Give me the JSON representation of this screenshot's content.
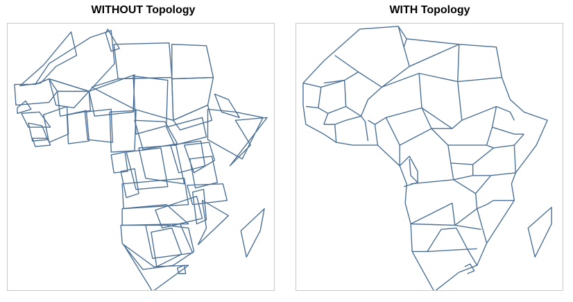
{
  "colors": {
    "stroke": "#4a6f96",
    "frame": "#c8c8c8",
    "background": "#ffffff"
  },
  "panels": [
    {
      "title": "WITHOUT Topology"
    },
    {
      "title": "WITH Topology"
    }
  ]
}
